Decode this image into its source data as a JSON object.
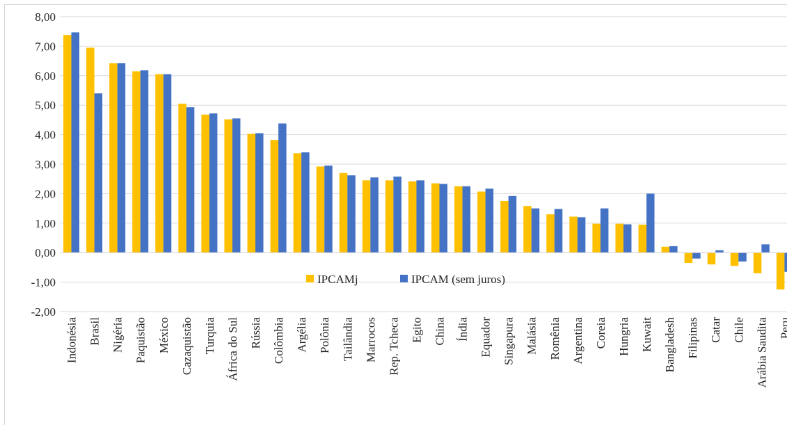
{
  "chart_data": {
    "type": "bar",
    "categories": [
      "Indonésia",
      "Brasil",
      "Nigéria",
      "Paquistão",
      "México",
      "Cazaquistão",
      "Turquia",
      "África do Sul",
      "Rússia",
      "Colômbia",
      "Argélia",
      "Polônia",
      "Tailândia",
      "Marrocos",
      "Rep. Tcheca",
      "Egito",
      "China",
      "Índia",
      "Equador",
      "Singapura",
      "Malásia",
      "Romênia",
      "Argentina",
      "Coreia",
      "Hungria",
      "Kuwait",
      "Bangladesh",
      "Filipinas",
      "Catar",
      "Chile",
      "Arábia Saudita",
      "Peru"
    ],
    "series": [
      {
        "name": "IPCAMj",
        "color": "#ffc000",
        "values": [
          7.38,
          6.95,
          6.42,
          6.15,
          6.05,
          5.05,
          4.68,
          4.52,
          4.03,
          3.82,
          3.37,
          2.92,
          2.7,
          2.45,
          2.45,
          2.42,
          2.35,
          2.25,
          2.07,
          1.75,
          1.58,
          1.3,
          1.22,
          0.98,
          0.98,
          0.95,
          0.2,
          -0.35,
          -0.4,
          -0.45,
          -0.7,
          -1.25
        ]
      },
      {
        "name": "IPCAM (sem juros)",
        "color": "#4472c4",
        "values": [
          7.47,
          5.4,
          6.42,
          6.18,
          6.05,
          4.93,
          4.72,
          4.55,
          4.05,
          4.38,
          3.4,
          2.95,
          2.62,
          2.55,
          2.58,
          2.45,
          2.33,
          2.25,
          2.17,
          1.92,
          1.5,
          1.48,
          1.2,
          1.5,
          0.96,
          2.0,
          0.22,
          -0.2,
          0.08,
          -0.3,
          0.28,
          -0.65
        ]
      }
    ],
    "ylim": [
      -2,
      8
    ],
    "yticks": [
      {
        "value": -2,
        "label": "-2,00"
      },
      {
        "value": -1,
        "label": "-1,00"
      },
      {
        "value": 0,
        "label": "0,00"
      },
      {
        "value": 1,
        "label": "1,00"
      },
      {
        "value": 2,
        "label": "2,00"
      },
      {
        "value": 3,
        "label": "3,00"
      },
      {
        "value": 4,
        "label": "4,00"
      },
      {
        "value": 5,
        "label": "5,00"
      },
      {
        "value": 6,
        "label": "6,00"
      },
      {
        "value": 7,
        "label": "7,00"
      },
      {
        "value": 8,
        "label": "8,00"
      }
    ],
    "grid": true
  }
}
